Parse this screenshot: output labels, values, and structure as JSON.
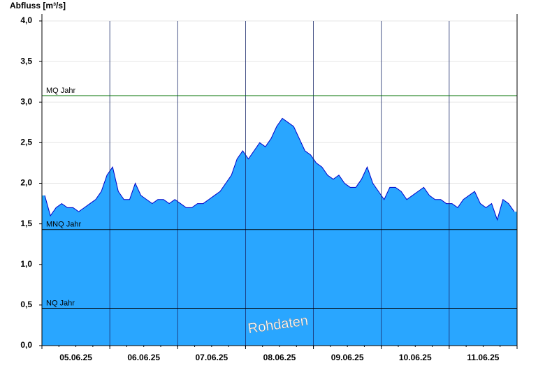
{
  "chart_data": {
    "type": "area",
    "title": "Abfluss [m³/s]",
    "categories": [
      null,
      null,
      null,
      null,
      null,
      null,
      "05.06.25",
      null,
      null,
      null,
      null,
      null,
      null,
      null,
      null,
      null,
      null,
      null,
      "06.06.25",
      null,
      null,
      null,
      null,
      null,
      null,
      null,
      null,
      null,
      null,
      null,
      "07.06.25",
      null,
      null,
      null,
      null,
      null,
      null,
      null,
      null,
      null,
      null,
      null,
      "08.06.25",
      null,
      null,
      null,
      null,
      null,
      null,
      null,
      null,
      null,
      null,
      null,
      "09.06.25",
      null,
      null,
      null,
      null,
      null,
      null,
      null,
      null,
      null,
      null,
      null,
      "10.06.25",
      null,
      null,
      null,
      null,
      null,
      null,
      null,
      null,
      null,
      null,
      null,
      "11.06.25",
      null,
      null,
      null,
      null,
      null
    ],
    "values": [
      1.85,
      1.6,
      1.7,
      1.75,
      1.7,
      1.7,
      1.65,
      1.7,
      1.75,
      1.8,
      1.9,
      2.1,
      2.2,
      1.9,
      1.8,
      1.8,
      2.0,
      1.85,
      1.8,
      1.75,
      1.8,
      1.8,
      1.75,
      1.8,
      1.75,
      1.7,
      1.7,
      1.75,
      1.75,
      1.8,
      1.85,
      1.9,
      2.0,
      2.1,
      2.3,
      2.4,
      2.3,
      2.4,
      2.5,
      2.45,
      2.55,
      2.7,
      2.8,
      2.75,
      2.7,
      2.55,
      2.4,
      2.35,
      2.25,
      2.2,
      2.1,
      2.05,
      2.1,
      2.0,
      1.95,
      1.95,
      2.05,
      2.2,
      2.0,
      1.9,
      1.8,
      1.95,
      1.95,
      1.9,
      1.8,
      1.85,
      1.9,
      1.95,
      1.85,
      1.8,
      1.8,
      1.75,
      1.75,
      1.7,
      1.8,
      1.85,
      1.9,
      1.75,
      1.7,
      1.75,
      1.55,
      1.8,
      1.75,
      1.65
    ],
    "color": "#29a6ff",
    "line_color": "#0000c8",
    "ylim": [
      0,
      4.0
    ],
    "yticks": [
      {
        "value": 0,
        "label": "0,0"
      },
      {
        "value": 0.5,
        "label": "0,5"
      },
      {
        "value": 1.0,
        "label": "1,0"
      },
      {
        "value": 1.5,
        "label": "1,5"
      },
      {
        "value": 2.0,
        "label": "2,0"
      },
      {
        "value": 2.5,
        "label": "2,5"
      },
      {
        "value": 3.0,
        "label": "3,0"
      },
      {
        "value": 3.5,
        "label": "3,5"
      },
      {
        "value": 4.0,
        "label": "4,0"
      }
    ],
    "grid": true,
    "reference_lines": [
      {
        "label": "MQ Jahr",
        "value": 3.08,
        "color": "#007000"
      },
      {
        "label": "MNQ Jahr",
        "value": 1.43,
        "color": "#000000"
      },
      {
        "label": "NQ Jahr",
        "value": 0.46,
        "color": "#000000"
      }
    ],
    "annotation": "Rohdaten"
  }
}
